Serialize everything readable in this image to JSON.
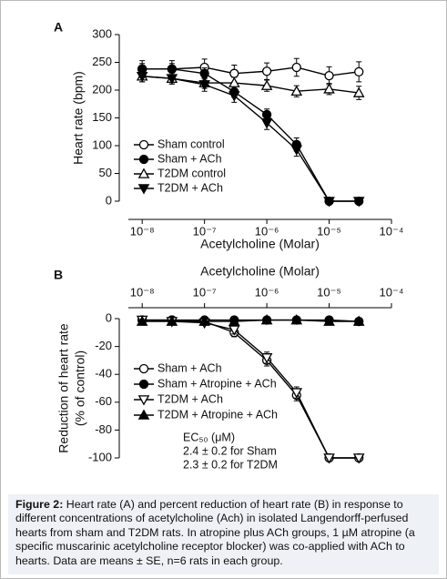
{
  "chart_data": [
    {
      "type": "line",
      "panel": "A",
      "xlabel": "Acetylcholine (Molar)",
      "ylabel": [
        "Heart rate (bpm)"
      ],
      "xlog": true,
      "xaxis_position": "bottom",
      "x": [
        1e-08,
        3e-08,
        1e-07,
        3e-07,
        1e-06,
        3e-06,
        1e-05,
        3e-05
      ],
      "xlim": [
        6e-09,
        0.0001
      ],
      "xticks": [
        {
          "value": 1e-08,
          "label": "10⁻⁸"
        },
        {
          "value": 1e-07,
          "label": "10⁻⁷"
        },
        {
          "value": 1e-06,
          "label": "10⁻⁶"
        },
        {
          "value": 1e-05,
          "label": "10⁻⁵"
        },
        {
          "value": 0.0001,
          "label": "10⁻⁴"
        }
      ],
      "ylim": [
        0,
        300
      ],
      "yticks": [
        0,
        50,
        100,
        150,
        200,
        250,
        300
      ],
      "legend": "center-left",
      "series": [
        {
          "name": "Sham control",
          "color": "#000000",
          "marker": "open-circle",
          "values": [
            238,
            238,
            241,
            230,
            234,
            241,
            226,
            233
          ],
          "errors": [
            15,
            15,
            15,
            15,
            15,
            16,
            16,
            18
          ]
        },
        {
          "name": "Sham + ACh",
          "color": "#000000",
          "marker": "filled-circle",
          "values": [
            238,
            238,
            230,
            197,
            156,
            102,
            0,
            0
          ],
          "errors": [
            10,
            10,
            10,
            10,
            10,
            12,
            3,
            3
          ]
        },
        {
          "name": "T2DM control",
          "color": "#000000",
          "marker": "open-triangle-up",
          "values": [
            225,
            221,
            213,
            213,
            208,
            198,
            202,
            195
          ],
          "errors": [
            10,
            10,
            10,
            10,
            10,
            10,
            10,
            12
          ]
        },
        {
          "name": "T2DM + ACh",
          "color": "#000000",
          "marker": "filled-triangle-down",
          "values": [
            225,
            221,
            210,
            190,
            141,
            93,
            0,
            0
          ],
          "errors": [
            10,
            10,
            12,
            12,
            12,
            12,
            3,
            3
          ]
        }
      ]
    },
    {
      "type": "line",
      "panel": "B",
      "xlabel": "Acetylcholine (Molar)",
      "ylabel": [
        "Reduction of heart rate",
        "(% of control)"
      ],
      "xlog": true,
      "xaxis_position": "top",
      "x": [
        1e-08,
        3e-08,
        1e-07,
        3e-07,
        1e-06,
        3e-06,
        1e-05,
        3e-05
      ],
      "xlim": [
        6e-09,
        0.0001
      ],
      "xticks": [
        {
          "value": 1e-08,
          "label": "10⁻⁸"
        },
        {
          "value": 1e-07,
          "label": "10⁻⁷"
        },
        {
          "value": 1e-06,
          "label": "10⁻⁶"
        },
        {
          "value": 1e-05,
          "label": "10⁻⁵"
        },
        {
          "value": 0.0001,
          "label": "10⁻⁴"
        }
      ],
      "ylim": [
        -100,
        0
      ],
      "yticks": [
        0,
        -20,
        -40,
        -60,
        -80,
        -100
      ],
      "legend": "center-left",
      "annotation": [
        "EC₅₀ (μM)",
        "2.4 ± 0.2 for Sham",
        "2.3 ± 0.2 for T2DM"
      ],
      "series": [
        {
          "name": "Sham + ACh",
          "color": "#000000",
          "marker": "open-circle",
          "values": [
            -1,
            -1,
            -2,
            -10,
            -30,
            -55,
            -100,
            -100
          ],
          "errors": [
            1,
            1,
            1,
            3,
            4,
            4,
            1,
            1
          ]
        },
        {
          "name": "Sham + Atropine + ACh",
          "color": "#000000",
          "marker": "filled-circle",
          "values": [
            -1,
            -1,
            -1,
            -1,
            -1,
            -1,
            -1,
            -2
          ],
          "errors": [
            1,
            1,
            1,
            1,
            1,
            1,
            1,
            1
          ]
        },
        {
          "name": "T2DM + ACh",
          "color": "#000000",
          "marker": "open-triangle-down",
          "values": [
            -1,
            -2,
            -3,
            -8,
            -28,
            -53,
            -100,
            -100
          ],
          "errors": [
            1,
            1,
            1,
            3,
            4,
            4,
            1,
            1
          ]
        },
        {
          "name": "T2DM + Atropine + ACh",
          "color": "#000000",
          "marker": "filled-triangle-up",
          "values": [
            -2,
            -2,
            -2,
            -2,
            -1,
            -1,
            -2,
            -2
          ],
          "errors": [
            1,
            1,
            1,
            1,
            1,
            1,
            1,
            1
          ]
        }
      ]
    }
  ],
  "caption": {
    "label": "Figure 2:",
    "text": " Heart rate (A) and percent reduction of heart rate (B) in response to different concentrations of acetylcholine (Ach) in isolated Langendorff-perfused hearts from sham and T2DM rats. In atropine plus ACh groups, 1 µM atropine (a specific muscarinic acetylcholine receptor blocker) was co-applied with ACh to hearts. Data are means ± SE, n=6 rats in each group."
  }
}
